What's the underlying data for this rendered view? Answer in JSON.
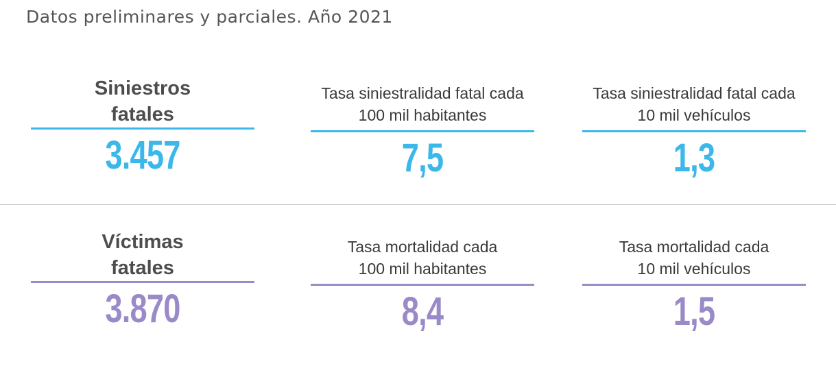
{
  "subtitle": "Datos preliminares y parciales. Año 2021",
  "colors": {
    "blue": "#3bb7ea",
    "purple": "#9b8ac8"
  },
  "rows": [
    {
      "cells": [
        {
          "label_lines": [
            "Siniestros",
            "fatales"
          ],
          "value": "3.457"
        },
        {
          "label_lines": [
            "Tasa siniestralidad fatal cada",
            "100 mil habitantes"
          ],
          "value": "7,5"
        },
        {
          "label_lines": [
            "Tasa siniestralidad fatal cada",
            "10 mil vehículos"
          ],
          "value": "1,3"
        }
      ]
    },
    {
      "cells": [
        {
          "label_lines": [
            "Víctimas",
            "fatales"
          ],
          "value": "3.870"
        },
        {
          "label_lines": [
            "Tasa mortalidad cada",
            "100 mil habitantes"
          ],
          "value": "8,4"
        },
        {
          "label_lines": [
            "Tasa mortalidad cada",
            "10 mil vehículos"
          ],
          "value": "1,5"
        }
      ]
    }
  ]
}
